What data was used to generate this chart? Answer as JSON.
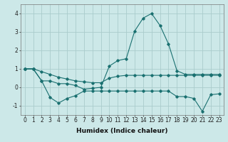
{
  "xlabel": "Humidex (Indice chaleur)",
  "background_color": "#cce8e8",
  "grid_color": "#aacccc",
  "line_color": "#1a7070",
  "x_values": [
    0,
    1,
    2,
    3,
    4,
    5,
    6,
    7,
    8,
    9,
    10,
    11,
    12,
    13,
    14,
    15,
    16,
    17,
    18,
    19,
    20,
    21,
    22,
    23
  ],
  "line1": [
    1.0,
    1.0,
    0.85,
    0.7,
    0.55,
    0.45,
    0.35,
    0.3,
    0.25,
    0.25,
    0.5,
    0.6,
    0.65,
    0.65,
    0.65,
    0.65,
    0.65,
    0.65,
    0.65,
    0.65,
    0.65,
    0.65,
    0.65,
    0.65
  ],
  "line2": [
    1.0,
    1.0,
    0.35,
    0.35,
    0.2,
    0.2,
    0.1,
    -0.1,
    -0.05,
    0.0,
    1.15,
    1.45,
    1.55,
    3.05,
    3.75,
    4.0,
    3.35,
    2.35,
    0.9,
    0.7,
    0.7,
    0.7,
    0.7,
    0.7
  ],
  "line3": [
    1.0,
    1.0,
    0.35,
    -0.55,
    -0.85,
    -0.6,
    -0.45,
    -0.2,
    -0.2,
    -0.2,
    -0.2,
    -0.2,
    -0.2,
    -0.2,
    -0.2,
    -0.2,
    -0.2,
    -0.2,
    -0.5,
    -0.5,
    -0.6,
    -1.3,
    -0.4,
    -0.35
  ],
  "ylim": [
    -1.5,
    4.5
  ],
  "yticks": [
    -1,
    0,
    1,
    2,
    3,
    4
  ],
  "xlim": [
    -0.5,
    23.5
  ],
  "tick_fontsize": 5.5,
  "label_fontsize": 6.5
}
